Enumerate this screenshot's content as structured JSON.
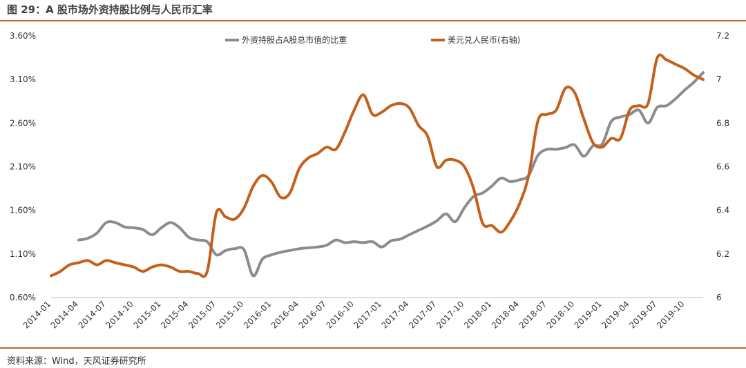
{
  "figure": {
    "title": "图 29：A 股市场外资持股比例与人民币汇率",
    "source": "资料来源：Wind，天风证券研究所"
  },
  "colors": {
    "rule": "#c0632a",
    "series_1": "#8c8c8c",
    "series_2": "#c5601c"
  },
  "chart_data": {
    "type": "line",
    "x_tick_labels": [
      "2014-01",
      "2014-04",
      "2014-07",
      "2014-10",
      "2015-01",
      "2015-04",
      "2015-07",
      "2015-10",
      "2016-01",
      "2016-04",
      "2016-07",
      "2016-10",
      "2017-01",
      "2017-04",
      "2017-07",
      "2017-10",
      "2018-01",
      "2018-04",
      "2018-07",
      "2018-10",
      "2019-01",
      "2019-04",
      "2019-07",
      "2019-10"
    ],
    "x_range": [
      0,
      71
    ],
    "y_left": {
      "range": [
        0.006,
        0.036
      ],
      "tick_labels": [
        "0.60%",
        "1.10%",
        "1.60%",
        "2.10%",
        "2.60%",
        "3.10%",
        "3.60%"
      ],
      "tick_values": [
        0.006,
        0.011,
        0.016,
        0.021,
        0.026,
        0.031,
        0.036
      ]
    },
    "y_right": {
      "range": [
        6.0,
        7.2
      ],
      "tick_labels": [
        "6",
        "6.2",
        "6.4",
        "6.6",
        "6.8",
        "7",
        "7.2"
      ],
      "tick_values": [
        6.0,
        6.2,
        6.4,
        6.6,
        6.8,
        7.0,
        7.2
      ]
    },
    "grid": false,
    "legend_position": "top",
    "series": [
      {
        "name": "外资持股占A股总市值的比重",
        "axis": "left",
        "color": "#8c8c8c",
        "x": [
          3,
          4,
          5,
          6,
          7,
          8,
          9,
          10,
          11,
          12,
          13,
          14,
          15,
          16,
          17,
          18,
          19,
          20,
          21,
          22,
          23,
          24,
          25,
          26,
          27,
          28,
          29,
          30,
          31,
          32,
          33,
          34,
          35,
          36,
          37,
          38,
          39,
          40,
          41,
          42,
          43,
          44,
          45,
          46,
          47,
          48,
          49,
          50,
          51,
          52,
          53,
          54,
          55,
          56,
          57,
          58,
          59,
          60,
          61,
          62,
          63,
          64,
          65,
          66,
          67,
          68,
          69,
          70,
          71
        ],
        "values": [
          0.0126,
          0.0128,
          0.0134,
          0.0146,
          0.0146,
          0.0141,
          0.014,
          0.0138,
          0.0132,
          0.014,
          0.0146,
          0.014,
          0.0129,
          0.0126,
          0.0124,
          0.0109,
          0.0114,
          0.0116,
          0.0115,
          0.0085,
          0.0104,
          0.0109,
          0.0112,
          0.0114,
          0.0116,
          0.0117,
          0.0118,
          0.012,
          0.0126,
          0.0123,
          0.0124,
          0.0123,
          0.0124,
          0.0118,
          0.0125,
          0.0127,
          0.0132,
          0.0137,
          0.0142,
          0.0148,
          0.0156,
          0.0147,
          0.0163,
          0.0176,
          0.018,
          0.0188,
          0.0197,
          0.0193,
          0.0195,
          0.02,
          0.0223,
          0.023,
          0.023,
          0.0232,
          0.0235,
          0.0222,
          0.0234,
          0.0236,
          0.0262,
          0.0267,
          0.027,
          0.0275,
          0.026,
          0.0278,
          0.028,
          0.0288,
          0.0298,
          0.0307,
          0.0318
        ]
      },
      {
        "name": "美元兑人民币(右轴)",
        "axis": "right",
        "color": "#c5601c",
        "x": [
          0,
          1,
          2,
          3,
          4,
          5,
          6,
          7,
          8,
          9,
          10,
          11,
          12,
          13,
          14,
          15,
          16,
          17,
          18,
          19,
          20,
          21,
          22,
          23,
          24,
          25,
          26,
          27,
          28,
          29,
          30,
          31,
          32,
          33,
          34,
          35,
          36,
          37,
          38,
          39,
          40,
          41,
          42,
          43,
          44,
          45,
          46,
          47,
          48,
          49,
          50,
          51,
          52,
          53,
          54,
          55,
          56,
          57,
          58,
          59,
          60,
          61,
          62,
          63,
          64,
          65,
          66,
          67,
          68,
          69,
          70,
          71
        ],
        "values": [
          6.1,
          6.12,
          6.15,
          6.16,
          6.17,
          6.15,
          6.17,
          6.16,
          6.15,
          6.14,
          6.12,
          6.14,
          6.15,
          6.14,
          6.12,
          6.12,
          6.11,
          6.12,
          6.39,
          6.37,
          6.36,
          6.41,
          6.51,
          6.56,
          6.53,
          6.46,
          6.48,
          6.59,
          6.64,
          6.66,
          6.69,
          6.68,
          6.76,
          6.86,
          6.93,
          6.84,
          6.85,
          6.88,
          6.89,
          6.87,
          6.79,
          6.74,
          6.6,
          6.63,
          6.63,
          6.6,
          6.5,
          6.34,
          6.33,
          6.3,
          6.35,
          6.43,
          6.56,
          6.81,
          6.84,
          6.86,
          6.96,
          6.94,
          6.82,
          6.71,
          6.69,
          6.73,
          6.73,
          6.86,
          6.88,
          6.89,
          7.1,
          7.09,
          7.07,
          7.05,
          7.02,
          7.0
        ]
      }
    ]
  }
}
